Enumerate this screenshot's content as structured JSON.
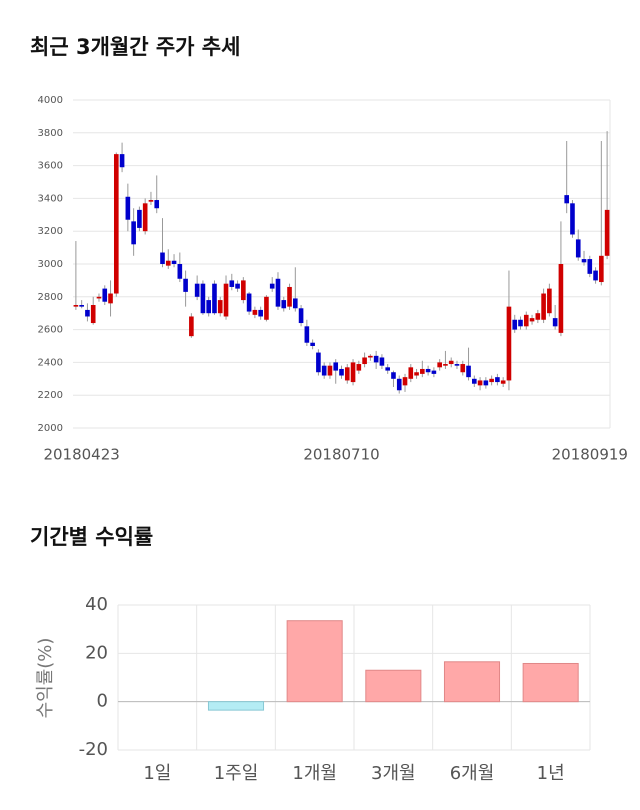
{
  "chart_data": [
    {
      "type": "candlestick",
      "title": "최근 3개월간 주가 추세",
      "categories": [
        null,
        "20180423",
        null,
        null,
        null,
        null,
        null,
        null,
        null,
        null,
        null,
        null,
        null,
        null,
        null,
        null,
        null,
        null,
        null,
        null,
        null,
        null,
        null,
        null,
        null,
        null,
        null,
        null,
        null,
        null,
        null,
        null,
        null,
        null,
        null,
        null,
        null,
        null,
        null,
        null,
        null,
        null,
        null,
        null,
        null,
        null,
        "20180710",
        null,
        null,
        null,
        null,
        null,
        null,
        null,
        null,
        null,
        null,
        null,
        null,
        null,
        null,
        null,
        null,
        null,
        null,
        null,
        null,
        null,
        null,
        null,
        null,
        null,
        null,
        null,
        null,
        null,
        null,
        null,
        null,
        null,
        null,
        null,
        null,
        null,
        null,
        null,
        null,
        null,
        null,
        "20180919",
        null,
        null,
        null
      ],
      "ohlc": [
        [
          2740,
          3140,
          2720,
          2750
        ],
        [
          2750,
          2780,
          2730,
          2740
        ],
        [
          2720,
          2760,
          2650,
          2680
        ],
        [
          2640,
          2800,
          2630,
          2750
        ],
        [
          2790,
          2820,
          2770,
          2800
        ],
        [
          2850,
          2870,
          2750,
          2770
        ],
        [
          2760,
          2900,
          2680,
          2820
        ],
        [
          2820,
          3680,
          2800,
          3670
        ],
        [
          3670,
          3740,
          3560,
          3590
        ],
        [
          3410,
          3490,
          3200,
          3270
        ],
        [
          3260,
          3340,
          3050,
          3120
        ],
        [
          3330,
          3350,
          3200,
          3220
        ],
        [
          3200,
          3400,
          3180,
          3370
        ],
        [
          3380,
          3440,
          3360,
          3390
        ],
        [
          3390,
          3540,
          3310,
          3340
        ],
        [
          3070,
          3280,
          2980,
          3000
        ],
        [
          2990,
          3090,
          2970,
          3020
        ],
        [
          3020,
          3060,
          2980,
          3000
        ],
        [
          3000,
          3070,
          2890,
          2910
        ],
        [
          2910,
          2960,
          2740,
          2830
        ],
        [
          2560,
          2700,
          2550,
          2680
        ],
        [
          2880,
          2930,
          2780,
          2800
        ],
        [
          2880,
          2900,
          2690,
          2700
        ],
        [
          2780,
          2800,
          2680,
          2700
        ],
        [
          2880,
          2900,
          2690,
          2700
        ],
        [
          2700,
          2800,
          2680,
          2780
        ],
        [
          2680,
          2930,
          2660,
          2880
        ],
        [
          2900,
          2940,
          2840,
          2860
        ],
        [
          2880,
          2900,
          2830,
          2850
        ],
        [
          2780,
          2920,
          2760,
          2900
        ],
        [
          2820,
          2830,
          2690,
          2710
        ],
        [
          2690,
          2740,
          2670,
          2720
        ],
        [
          2720,
          2740,
          2660,
          2680
        ],
        [
          2660,
          2810,
          2650,
          2800
        ],
        [
          2880,
          2920,
          2830,
          2850
        ],
        [
          2910,
          2950,
          2720,
          2740
        ],
        [
          2780,
          2800,
          2710,
          2730
        ],
        [
          2740,
          2880,
          2720,
          2860
        ],
        [
          2790,
          2980,
          2710,
          2730
        ],
        [
          2730,
          2750,
          2620,
          2640
        ],
        [
          2620,
          2660,
          2500,
          2520
        ],
        [
          2520,
          2540,
          2480,
          2500
        ],
        [
          2460,
          2480,
          2320,
          2340
        ],
        [
          2380,
          2400,
          2300,
          2320
        ],
        [
          2320,
          2400,
          2300,
          2380
        ],
        [
          2400,
          2420,
          2270,
          2350
        ],
        [
          2360,
          2380,
          2300,
          2320
        ],
        [
          2290,
          2390,
          2270,
          2370
        ],
        [
          2280,
          2420,
          2260,
          2400
        ],
        [
          2350,
          2410,
          2330,
          2390
        ],
        [
          2390,
          2460,
          2370,
          2430
        ],
        [
          2430,
          2450,
          2410,
          2440
        ],
        [
          2440,
          2470,
          2360,
          2400
        ],
        [
          2430,
          2450,
          2360,
          2380
        ],
        [
          2370,
          2390,
          2330,
          2350
        ],
        [
          2340,
          2350,
          2250,
          2300
        ],
        [
          2300,
          2320,
          2210,
          2230
        ],
        [
          2260,
          2330,
          2220,
          2310
        ],
        [
          2300,
          2390,
          2280,
          2370
        ],
        [
          2320,
          2360,
          2300,
          2340
        ],
        [
          2330,
          2410,
          2310,
          2360
        ],
        [
          2360,
          2380,
          2320,
          2340
        ],
        [
          2350,
          2370,
          2310,
          2330
        ],
        [
          2370,
          2420,
          2350,
          2400
        ],
        [
          2380,
          2470,
          2360,
          2390
        ],
        [
          2390,
          2430,
          2370,
          2410
        ],
        [
          2390,
          2410,
          2360,
          2380
        ],
        [
          2340,
          2410,
          2320,
          2390
        ],
        [
          2380,
          2490,
          2290,
          2310
        ],
        [
          2300,
          2320,
          2250,
          2270
        ],
        [
          2260,
          2310,
          2230,
          2290
        ],
        [
          2290,
          2310,
          2240,
          2260
        ],
        [
          2280,
          2320,
          2260,
          2300
        ],
        [
          2310,
          2330,
          2260,
          2280
        ],
        [
          2270,
          2310,
          2250,
          2290
        ],
        [
          2290,
          2960,
          2230,
          2740
        ],
        [
          2660,
          2690,
          2580,
          2600
        ],
        [
          2660,
          2680,
          2600,
          2620
        ],
        [
          2620,
          2710,
          2600,
          2690
        ],
        [
          2650,
          2690,
          2630,
          2670
        ],
        [
          2660,
          2720,
          2640,
          2700
        ],
        [
          2660,
          2850,
          2640,
          2820
        ],
        [
          2700,
          2880,
          2680,
          2850
        ],
        [
          2670,
          2750,
          2600,
          2620
        ],
        [
          2580,
          3260,
          2560,
          3000
        ],
        [
          3420,
          3750,
          3310,
          3370
        ],
        [
          3370,
          3390,
          3160,
          3180
        ],
        [
          3150,
          3210,
          3020,
          3040
        ],
        [
          3030,
          3080,
          2990,
          3010
        ],
        [
          3030,
          3050,
          2920,
          2940
        ],
        [
          2960,
          2980,
          2880,
          2900
        ],
        [
          2890,
          3750,
          2870,
          3050
        ],
        [
          3050,
          3810,
          3030,
          3330
        ]
      ],
      "up_color": "#d00000",
      "down_color": "#0000cc",
      "ylim": [
        2000,
        4000
      ],
      "yticks": [
        2000,
        2200,
        2400,
        2600,
        2800,
        3000,
        3200,
        3400,
        3600,
        3800,
        4000
      ],
      "grid": true
    },
    {
      "type": "bar",
      "title": "기간별 수익률",
      "ylabel": "수익률(%)",
      "categories": [
        "1일",
        "1주일",
        "1개월",
        "3개월",
        "6개월",
        "1년"
      ],
      "values": [
        0,
        -3.5,
        33.5,
        13,
        16.5,
        15.8
      ],
      "positive_color": "#ffa8a8",
      "negative_color": "#b4ecf4",
      "ylim": [
        -20,
        40
      ],
      "yticks": [
        -20,
        0,
        20,
        40
      ],
      "grid": true
    }
  ]
}
